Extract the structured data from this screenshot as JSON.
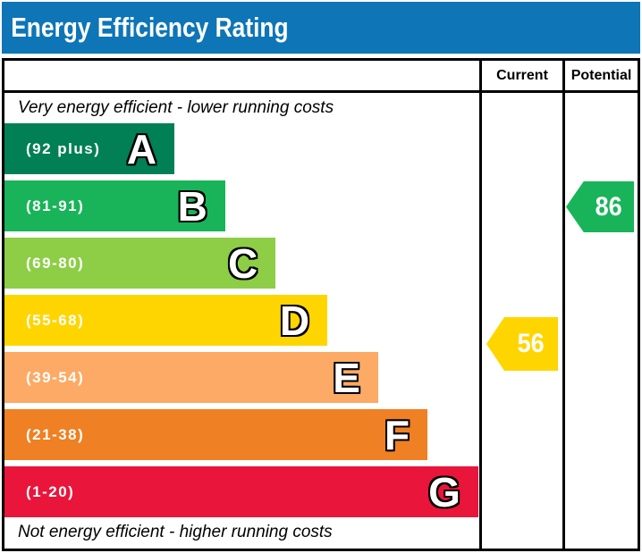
{
  "title": "Energy Efficiency Rating",
  "title_bar_color": "#0e75b6",
  "columns": {
    "current_label": "Current",
    "potential_label": "Potential"
  },
  "notes": {
    "top": "Very energy efficient - lower running costs",
    "bottom": "Not energy efficient - higher running costs"
  },
  "chart_data": {
    "type": "bar",
    "title": "Energy Efficiency Rating",
    "orientation": "horizontal",
    "bands": [
      {
        "letter": "A",
        "range": "(92 plus)",
        "color": "#008054",
        "width_pct": 35.8
      },
      {
        "letter": "B",
        "range": "(81-91)",
        "color": "#19b459",
        "width_pct": 46.5
      },
      {
        "letter": "C",
        "range": "(69-80)",
        "color": "#8dce46",
        "width_pct": 57.1
      },
      {
        "letter": "D",
        "range": "(55-68)",
        "color": "#ffd500",
        "width_pct": 68.0
      },
      {
        "letter": "E",
        "range": "(39-54)",
        "color": "#fcaa65",
        "width_pct": 78.7
      },
      {
        "letter": "F",
        "range": "(21-38)",
        "color": "#ef8023",
        "width_pct": 89.1
      },
      {
        "letter": "G",
        "range": "(1-20)",
        "color": "#e9153b",
        "width_pct": 99.8
      }
    ],
    "current": {
      "value": 56,
      "band": "D",
      "color": "#ffd500"
    },
    "potential": {
      "value": 86,
      "band": "B",
      "color": "#19b459"
    }
  }
}
